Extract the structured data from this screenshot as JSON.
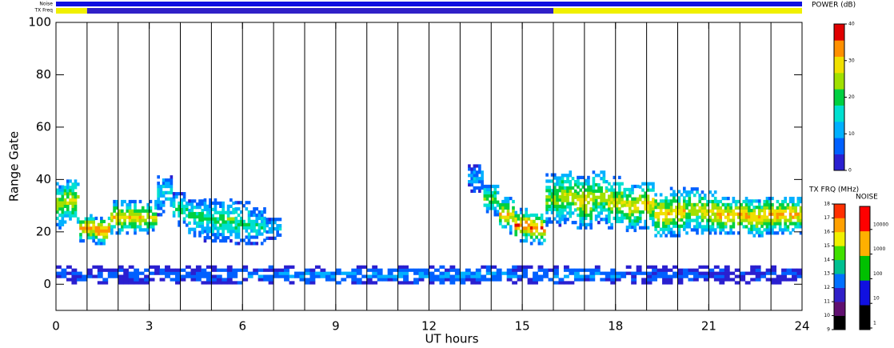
{
  "chart_data": {
    "type": "range-time",
    "xlabel": "UT hours",
    "ylabel": "Range Gate",
    "xlim": [
      0,
      24
    ],
    "ylim": [
      -10,
      100
    ],
    "xticks": [
      0,
      3,
      6,
      9,
      12,
      15,
      18,
      21,
      24
    ],
    "yticks": [
      0,
      20,
      40,
      60,
      80,
      100
    ],
    "hour_lines": [
      1,
      2,
      3,
      4,
      5,
      6,
      7,
      8,
      9,
      10,
      11,
      12,
      13,
      14,
      15,
      16,
      17,
      18,
      19,
      20,
      21,
      22,
      23
    ],
    "bands": [
      {
        "x": [
          0,
          0.5,
          1,
          1.5,
          2,
          2.5,
          3,
          3.5,
          4,
          4.5,
          5,
          5.5,
          6,
          6.5,
          7,
          7.5,
          8,
          8.5,
          9,
          9.5,
          10,
          10.5,
          11,
          11.5,
          12,
          12.5,
          13,
          13.5,
          14,
          14.5,
          15,
          15.5,
          16,
          16.5,
          17,
          17.5,
          18,
          18.5,
          19,
          19.5,
          20,
          20.5,
          21,
          21.5,
          22,
          22.5,
          23,
          23.5,
          24
        ],
        "center": [
          30,
          31,
          21,
          20,
          25,
          25,
          25,
          34,
          28,
          25,
          24,
          24,
          23,
          22,
          21,
          null,
          null,
          null,
          null,
          null,
          null,
          null,
          null,
          null,
          null,
          null,
          null,
          40,
          32,
          26,
          22,
          21,
          32,
          33,
          31,
          33,
          31,
          29,
          30,
          26,
          27,
          28,
          27,
          26,
          26,
          25,
          26,
          26,
          26
        ],
        "halfwidth": [
          9,
          9,
          5,
          5,
          6,
          6,
          6,
          8,
          6,
          7,
          8,
          8,
          8,
          7,
          4,
          null,
          null,
          null,
          null,
          null,
          null,
          null,
          null,
          null,
          null,
          null,
          null,
          5,
          6,
          7,
          6,
          6,
          10,
          10,
          10,
          10,
          10,
          9,
          9,
          8,
          9,
          9,
          8,
          7,
          7,
          7,
          7,
          7,
          7
        ],
        "power": [
          25,
          27,
          33,
          36,
          30,
          30,
          28,
          15,
          20,
          20,
          19,
          21,
          20,
          17,
          12,
          null,
          null,
          null,
          null,
          null,
          null,
          null,
          null,
          null,
          null,
          null,
          null,
          12,
          22,
          30,
          35,
          35,
          24,
          27,
          30,
          26,
          28,
          30,
          30,
          32,
          30,
          26,
          30,
          33,
          33,
          32,
          33,
          33,
          30
        ]
      },
      {
        "x": [
          0,
          1,
          2,
          3,
          4,
          5,
          6,
          7,
          8,
          9,
          10,
          11,
          12,
          13,
          14,
          15,
          16,
          17,
          18,
          19,
          20,
          21,
          22,
          23,
          24
        ],
        "center": [
          3,
          3,
          3,
          3,
          3,
          3,
          3,
          3,
          3,
          3,
          3,
          3,
          3,
          3,
          3,
          3,
          3,
          3,
          3,
          3,
          3,
          3,
          3,
          3,
          3
        ],
        "halfwidth": [
          3,
          3,
          3,
          3,
          3,
          3,
          3,
          3,
          3,
          3,
          3,
          3,
          3,
          3,
          3,
          3,
          3,
          3,
          3,
          3,
          3,
          3,
          3,
          3,
          3
        ],
        "power": [
          5,
          5,
          6,
          6,
          7,
          8,
          9,
          9,
          10,
          10,
          10,
          10,
          10,
          10,
          10,
          10,
          10,
          9,
          8,
          7,
          6,
          6,
          5,
          5,
          5
        ]
      }
    ],
    "power_scale": {
      "label": "POWER (dB)",
      "lim": [
        0,
        40
      ],
      "ticks": [
        0,
        10,
        20,
        30,
        40
      ],
      "colors": [
        "#2a1fd0",
        "#0060ff",
        "#00b0ff",
        "#00e0d0",
        "#00d040",
        "#a0e000",
        "#f0e000",
        "#ff9000",
        "#e00000"
      ]
    },
    "tx_freq_scale": {
      "label": "TX FRQ (MHz)",
      "lim": [
        9,
        18
      ],
      "ticks": [
        9,
        10,
        11,
        12,
        13,
        14,
        15,
        16,
        17,
        18
      ],
      "colors": [
        "#000000",
        "#601070",
        "#3020c8",
        "#0070ff",
        "#00c090",
        "#40e000",
        "#f0f000",
        "#ffa000",
        "#ff3000"
      ]
    },
    "noise_scale": {
      "label": "NOISE",
      "ticks": [
        1,
        10,
        100,
        1000,
        10000
      ],
      "colors": [
        "#000000",
        "#1010e0",
        "#00c000",
        "#ffb000",
        "#ff0000"
      ]
    },
    "noise_strip": {
      "label": "Noise",
      "start": [
        0
      ],
      "end": [
        24
      ],
      "noise": [
        50
      ]
    },
    "tx_strip": {
      "label": "TX Freq",
      "start": [
        0,
        1,
        16
      ],
      "end": [
        1,
        16,
        24
      ],
      "freq": [
        15,
        11,
        15
      ]
    }
  }
}
